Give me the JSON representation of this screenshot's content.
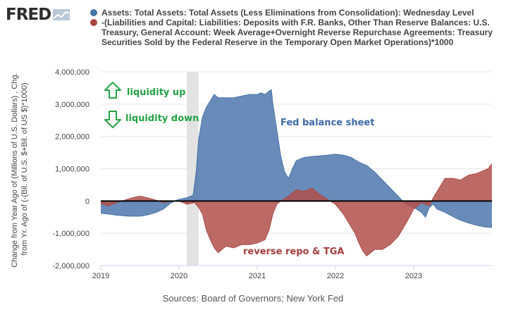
{
  "logo": {
    "text": "FRED",
    "icon": "fred-chart-icon"
  },
  "legend": [
    {
      "name": "Assets: Total Assets: Total Assets (Less Eliminations from Consolidation): Wednesday Level",
      "color": "#4572a7"
    },
    {
      "name": "-(Liabilities and Capital: Liabilities: Deposits with F.R. Banks, Other Than Reserve Balances: U.S. Treasury, General Account: Week Average+Overnight Reverse Repurchase Agreements: Treasury Securities Sold by the Federal Reserve in the Temporary Open Market Operations)*1000",
      "color": "#aa4643"
    }
  ],
  "sources": "Sources: Board of Governors; New York Fed",
  "colors": {
    "series1_fill": "#4f77ad",
    "series1_line": "#4572a7",
    "series2_fill": "#b2504c",
    "series2_line": "#aa4643",
    "recession": "#e3e3e3",
    "annotation_green": "#25a244"
  },
  "chart_data": {
    "type": "area",
    "title": "",
    "xlabel": "",
    "ylabel": "Change from Year Ago of (Millions of U.S. Dollars) , Chg. from Yr. Ago of (-(Bil. of U.S. $+Bil. of US $)*1000)",
    "xlim": [
      2019.0,
      2024.0
    ],
    "ylim": [
      -2000000,
      4000000
    ],
    "x_ticks": [
      2019,
      2020,
      2021,
      2022,
      2023
    ],
    "x_tick_labels": [
      "2019",
      "2020",
      "2021",
      "2022",
      "2023"
    ],
    "y_ticks": [
      -2000000,
      -1000000,
      0,
      1000000,
      2000000,
      3000000,
      4000000
    ],
    "y_tick_labels": [
      "-2,000,000",
      "-1,000,000",
      "0",
      "1,000,000",
      "2,000,000",
      "3,000,000",
      "4,000,000"
    ],
    "recession": [
      2020.1,
      2020.25
    ],
    "series": [
      {
        "name": "Assets: Total Assets: Total Assets (Less Eliminations from Consolidation): Wednesday Level",
        "points": [
          [
            2019.0,
            -380000
          ],
          [
            2019.1,
            -400000
          ],
          [
            2019.2,
            -440000
          ],
          [
            2019.35,
            -470000
          ],
          [
            2019.5,
            -470000
          ],
          [
            2019.6,
            -430000
          ],
          [
            2019.7,
            -360000
          ],
          [
            2019.8,
            -250000
          ],
          [
            2019.9,
            -50000
          ],
          [
            2020.0,
            50000
          ],
          [
            2020.1,
            100000
          ],
          [
            2020.18,
            180000
          ],
          [
            2020.22,
            900000
          ],
          [
            2020.25,
            1900000
          ],
          [
            2020.3,
            2600000
          ],
          [
            2020.35,
            2900000
          ],
          [
            2020.4,
            3100000
          ],
          [
            2020.45,
            3300000
          ],
          [
            2020.5,
            3200000
          ],
          [
            2020.6,
            3200000
          ],
          [
            2020.7,
            3200000
          ],
          [
            2020.8,
            3250000
          ],
          [
            2020.9,
            3300000
          ],
          [
            2021.0,
            3300000
          ],
          [
            2021.05,
            3350000
          ],
          [
            2021.1,
            3300000
          ],
          [
            2021.15,
            3400000
          ],
          [
            2021.18,
            3450000
          ],
          [
            2021.2,
            3000000
          ],
          [
            2021.25,
            2200000
          ],
          [
            2021.3,
            1400000
          ],
          [
            2021.35,
            900000
          ],
          [
            2021.4,
            700000
          ],
          [
            2021.45,
            1000000
          ],
          [
            2021.5,
            1250000
          ],
          [
            2021.6,
            1350000
          ],
          [
            2021.7,
            1380000
          ],
          [
            2021.8,
            1400000
          ],
          [
            2021.9,
            1420000
          ],
          [
            2022.0,
            1450000
          ],
          [
            2022.1,
            1420000
          ],
          [
            2022.2,
            1350000
          ],
          [
            2022.3,
            1200000
          ],
          [
            2022.4,
            1100000
          ],
          [
            2022.5,
            900000
          ],
          [
            2022.6,
            650000
          ],
          [
            2022.7,
            400000
          ],
          [
            2022.8,
            150000
          ],
          [
            2022.9,
            -100000
          ],
          [
            2023.0,
            -200000
          ],
          [
            2023.1,
            -350000
          ],
          [
            2023.15,
            -500000
          ],
          [
            2023.2,
            -200000
          ],
          [
            2023.25,
            -100000
          ],
          [
            2023.3,
            -250000
          ],
          [
            2023.4,
            -350000
          ],
          [
            2023.5,
            -480000
          ],
          [
            2023.6,
            -600000
          ],
          [
            2023.7,
            -680000
          ],
          [
            2023.8,
            -750000
          ],
          [
            2023.9,
            -800000
          ],
          [
            2024.0,
            -820000
          ]
        ]
      },
      {
        "name": "-(Liabilities and Capital: Liabilities: Deposits with F.R. Banks, Other Than Reserve Balances: U.S. Treasury, General Account: Week Average+Overnight Reverse Repurchase Agreements: Treasury Securities Sold by the Federal Reserve in the Temporary Open Market Operations)*1000",
        "points": [
          [
            2019.0,
            -80000
          ],
          [
            2019.1,
            -150000
          ],
          [
            2019.2,
            -50000
          ],
          [
            2019.3,
            20000
          ],
          [
            2019.4,
            100000
          ],
          [
            2019.5,
            150000
          ],
          [
            2019.6,
            100000
          ],
          [
            2019.7,
            30000
          ],
          [
            2019.8,
            -50000
          ],
          [
            2019.9,
            0
          ],
          [
            2020.0,
            0
          ],
          [
            2020.1,
            -100000
          ],
          [
            2020.2,
            -50000
          ],
          [
            2020.25,
            -200000
          ],
          [
            2020.3,
            -400000
          ],
          [
            2020.35,
            -900000
          ],
          [
            2020.4,
            -1200000
          ],
          [
            2020.45,
            -1450000
          ],
          [
            2020.5,
            -1600000
          ],
          [
            2020.55,
            -1500000
          ],
          [
            2020.6,
            -1400000
          ],
          [
            2020.7,
            -1450000
          ],
          [
            2020.8,
            -1350000
          ],
          [
            2020.9,
            -1350000
          ],
          [
            2021.0,
            -1300000
          ],
          [
            2021.1,
            -1200000
          ],
          [
            2021.15,
            -900000
          ],
          [
            2021.2,
            -400000
          ],
          [
            2021.25,
            -100000
          ],
          [
            2021.3,
            0
          ],
          [
            2021.4,
            150000
          ],
          [
            2021.5,
            350000
          ],
          [
            2021.6,
            300000
          ],
          [
            2021.7,
            400000
          ],
          [
            2021.8,
            200000
          ],
          [
            2021.9,
            50000
          ],
          [
            2022.0,
            -100000
          ],
          [
            2022.1,
            -400000
          ],
          [
            2022.15,
            -600000
          ],
          [
            2022.2,
            -800000
          ],
          [
            2022.25,
            -1000000
          ],
          [
            2022.3,
            -1300000
          ],
          [
            2022.35,
            -1550000
          ],
          [
            2022.4,
            -1700000
          ],
          [
            2022.45,
            -1600000
          ],
          [
            2022.5,
            -1500000
          ],
          [
            2022.6,
            -1500000
          ],
          [
            2022.7,
            -1350000
          ],
          [
            2022.8,
            -1100000
          ],
          [
            2022.9,
            -700000
          ],
          [
            2023.0,
            -250000
          ],
          [
            2023.1,
            -50000
          ],
          [
            2023.2,
            -150000
          ],
          [
            2023.25,
            100000
          ],
          [
            2023.3,
            300000
          ],
          [
            2023.4,
            700000
          ],
          [
            2023.5,
            700000
          ],
          [
            2023.6,
            650000
          ],
          [
            2023.7,
            800000
          ],
          [
            2023.8,
            850000
          ],
          [
            2023.9,
            950000
          ],
          [
            2023.95,
            1000000
          ],
          [
            2024.0,
            1150000
          ]
        ]
      }
    ],
    "annotations": [
      {
        "text": "liquidity up",
        "color": "#25a244",
        "icon": "arrow-up-outline-icon"
      },
      {
        "text": "liquidity down",
        "color": "#25a244",
        "icon": "arrow-down-outline-icon"
      },
      {
        "text": "Fed balance sheet",
        "color": "#3d69a6"
      },
      {
        "text": "reverse repo & TGA",
        "color": "#a43f3c"
      }
    ]
  }
}
